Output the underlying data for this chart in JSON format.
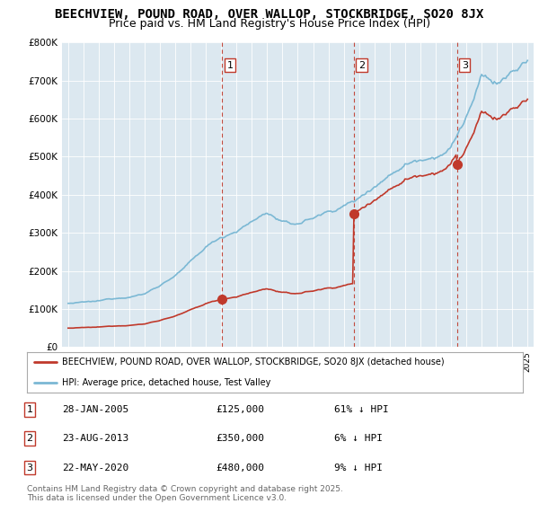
{
  "title": "BEECHVIEW, POUND ROAD, OVER WALLOP, STOCKBRIDGE, SO20 8JX",
  "subtitle": "Price paid vs. HM Land Registry's House Price Index (HPI)",
  "title_fontsize": 10,
  "subtitle_fontsize": 9,
  "ylim": [
    0,
    800000
  ],
  "yticks": [
    0,
    100000,
    200000,
    300000,
    400000,
    500000,
    600000,
    700000,
    800000
  ],
  "ytick_labels": [
    "£0",
    "£100K",
    "£200K",
    "£300K",
    "£400K",
    "£500K",
    "£600K",
    "£700K",
    "£800K"
  ],
  "xlim_start": 1994.6,
  "xlim_end": 2025.4,
  "xtick_years": [
    1995,
    1996,
    1997,
    1998,
    1999,
    2000,
    2001,
    2002,
    2003,
    2004,
    2005,
    2006,
    2007,
    2008,
    2009,
    2010,
    2011,
    2012,
    2013,
    2014,
    2015,
    2016,
    2017,
    2018,
    2019,
    2020,
    2021,
    2022,
    2023,
    2024,
    2025
  ],
  "hpi_color": "#7bb8d4",
  "price_color": "#c0392b",
  "vline_color": "#c0392b",
  "sale_events": [
    {
      "num": 1,
      "year": 2005.07,
      "price": 125000,
      "date": "28-JAN-2005",
      "pct": "61%",
      "direction": "↓"
    },
    {
      "num": 2,
      "year": 2013.65,
      "price": 350000,
      "date": "23-AUG-2013",
      "pct": "6%",
      "direction": "↓"
    },
    {
      "num": 3,
      "year": 2020.39,
      "price": 480000,
      "date": "22-MAY-2020",
      "pct": "9%",
      "direction": "↓"
    }
  ],
  "legend_label_red": "BEECHVIEW, POUND ROAD, OVER WALLOP, STOCKBRIDGE, SO20 8JX (detached house)",
  "legend_label_blue": "HPI: Average price, detached house, Test Valley",
  "footnote": "Contains HM Land Registry data © Crown copyright and database right 2025.\nThis data is licensed under the Open Government Licence v3.0.",
  "table_rows": [
    {
      "num": 1,
      "date": "28-JAN-2005",
      "price": "£125,000",
      "pct": "61% ↓ HPI"
    },
    {
      "num": 2,
      "date": "23-AUG-2013",
      "price": "£350,000",
      "pct": "6% ↓ HPI"
    },
    {
      "num": 3,
      "date": "22-MAY-2020",
      "price": "£480,000",
      "pct": "9% ↓ HPI"
    }
  ],
  "background_color": "#ffffff",
  "plot_bg_color": "#dce8f0"
}
